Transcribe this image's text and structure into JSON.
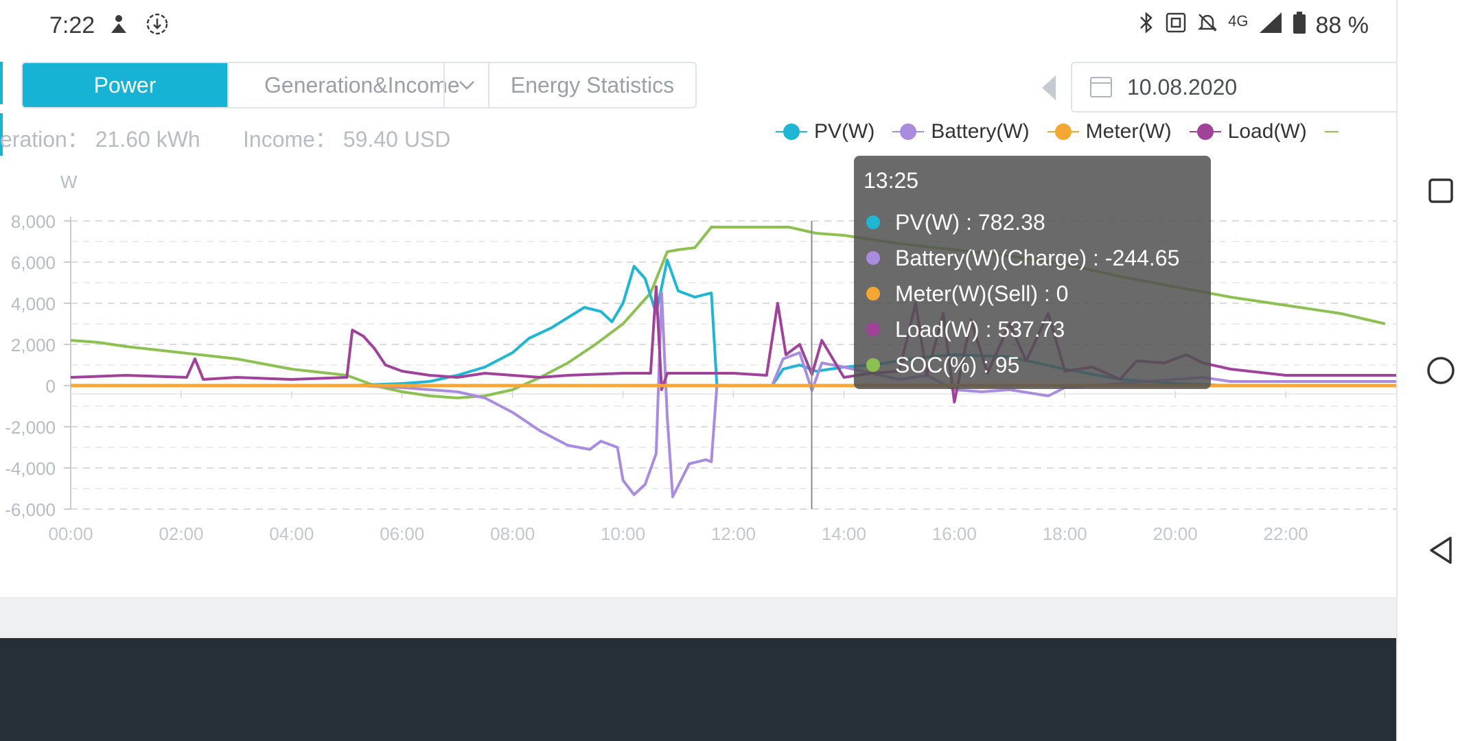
{
  "status_bar": {
    "time": "7:22",
    "left_icons": [
      "assistant-icon",
      "download-icon"
    ],
    "right_icons": [
      "bluetooth-icon",
      "nfc-icon",
      "mute-icon",
      "4g-icon",
      "signal-icon",
      "battery-icon"
    ],
    "network": "4G",
    "battery_percent": "88 %"
  },
  "tabs": {
    "power": "Power",
    "generation_income": "Generation&Income",
    "energy_statistics": "Energy Statistics"
  },
  "date": {
    "value": "10.08.2020"
  },
  "summary": {
    "generation_label": "eration：",
    "generation_value": "21.60 kWh",
    "income_label": "Income：",
    "income_value": "59.40 USD"
  },
  "legend": [
    {
      "name": "PV(W)",
      "color": "#1fb6d4"
    },
    {
      "name": "Battery(W)",
      "color": "#a98be0"
    },
    {
      "name": "Meter(W)",
      "color": "#f5a733"
    },
    {
      "name": "Load(W)",
      "color": "#a0429a"
    }
  ],
  "chart_data": {
    "type": "line",
    "ylabel": "W",
    "ylim": [
      -6000,
      8000
    ],
    "y_ticks": [
      "8,000",
      "6,000",
      "4,000",
      "2,000",
      "0",
      "-2,000",
      "-4,000",
      "-6,000"
    ],
    "x_ticks": [
      "00:00",
      "02:00",
      "04:00",
      "06:00",
      "08:00",
      "10:00",
      "12:00",
      "14:00",
      "16:00",
      "18:00",
      "20:00",
      "22:00"
    ],
    "grid": true,
    "series": [
      {
        "name": "PV(W)",
        "color": "#1fb6d4",
        "points": [
          [
            0,
            0
          ],
          [
            5,
            0
          ],
          [
            5.5,
            50
          ],
          [
            6,
            100
          ],
          [
            6.5,
            200
          ],
          [
            7,
            500
          ],
          [
            7.5,
            900
          ],
          [
            8,
            1600
          ],
          [
            8.3,
            2300
          ],
          [
            8.7,
            2800
          ],
          [
            9,
            3300
          ],
          [
            9.3,
            3800
          ],
          [
            9.6,
            3600
          ],
          [
            9.8,
            3100
          ],
          [
            10,
            4000
          ],
          [
            10.2,
            5800
          ],
          [
            10.4,
            5200
          ],
          [
            10.6,
            3500
          ],
          [
            10.8,
            6100
          ],
          [
            11,
            4600
          ],
          [
            11.3,
            4300
          ],
          [
            11.6,
            4500
          ],
          [
            11.7,
            0
          ],
          [
            12.7,
            0
          ],
          [
            12.9,
            800
          ],
          [
            13.2,
            1000
          ],
          [
            13.5,
            700
          ],
          [
            14,
            900
          ],
          [
            14.5,
            1000
          ],
          [
            15,
            1200
          ],
          [
            15.5,
            1400
          ],
          [
            16,
            1500
          ],
          [
            17,
            1400
          ],
          [
            18,
            800
          ],
          [
            19,
            300
          ],
          [
            20,
            100
          ],
          [
            21,
            0
          ],
          [
            24,
            0
          ]
        ]
      },
      {
        "name": "Battery(W)",
        "color": "#a98be0",
        "points": [
          [
            0,
            0
          ],
          [
            5.2,
            0
          ],
          [
            6,
            -100
          ],
          [
            7,
            -300
          ],
          [
            7.5,
            -600
          ],
          [
            8,
            -1300
          ],
          [
            8.5,
            -2200
          ],
          [
            9,
            -2900
          ],
          [
            9.4,
            -3100
          ],
          [
            9.6,
            -2700
          ],
          [
            9.9,
            -3000
          ],
          [
            10,
            -4600
          ],
          [
            10.2,
            -5300
          ],
          [
            10.4,
            -4800
          ],
          [
            10.6,
            -3300
          ],
          [
            10.7,
            4500
          ],
          [
            10.8,
            -1500
          ],
          [
            10.9,
            -5400
          ],
          [
            11.2,
            -3800
          ],
          [
            11.5,
            -3600
          ],
          [
            11.6,
            -3700
          ],
          [
            11.7,
            0
          ],
          [
            12.7,
            0
          ],
          [
            12.9,
            1300
          ],
          [
            13.2,
            1600
          ],
          [
            13.42,
            -244.65
          ],
          [
            13.6,
            1100
          ],
          [
            14,
            900
          ],
          [
            14.5,
            600
          ],
          [
            15,
            300
          ],
          [
            15.5,
            500
          ],
          [
            16,
            -200
          ],
          [
            16.5,
            -300
          ],
          [
            17,
            -200
          ],
          [
            17.7,
            -500
          ],
          [
            18,
            -100
          ],
          [
            19,
            100
          ],
          [
            20,
            300
          ],
          [
            20.5,
            400
          ],
          [
            21,
            200
          ],
          [
            24,
            200
          ]
        ]
      },
      {
        "name": "Meter(W)",
        "color": "#f5a733",
        "points": [
          [
            0,
            0
          ],
          [
            24,
            0
          ]
        ]
      },
      {
        "name": "Load(W)",
        "color": "#a0429a",
        "points": [
          [
            0,
            400
          ],
          [
            1,
            500
          ],
          [
            2.1,
            400
          ],
          [
            2.25,
            1300
          ],
          [
            2.4,
            300
          ],
          [
            3,
            400
          ],
          [
            4,
            300
          ],
          [
            5,
            400
          ],
          [
            5.1,
            2700
          ],
          [
            5.3,
            2400
          ],
          [
            5.5,
            1800
          ],
          [
            5.7,
            1000
          ],
          [
            6,
            700
          ],
          [
            6.5,
            500
          ],
          [
            7,
            400
          ],
          [
            7.5,
            600
          ],
          [
            8,
            500
          ],
          [
            8.5,
            400
          ],
          [
            9,
            500
          ],
          [
            10,
            600
          ],
          [
            10.5,
            600
          ],
          [
            10.6,
            4800
          ],
          [
            10.7,
            -200
          ],
          [
            10.8,
            600
          ],
          [
            11,
            600
          ],
          [
            12,
            600
          ],
          [
            12.6,
            500
          ],
          [
            12.8,
            4000
          ],
          [
            12.95,
            1500
          ],
          [
            13.2,
            2000
          ],
          [
            13.42,
            537.73
          ],
          [
            13.6,
            2200
          ],
          [
            14,
            400
          ],
          [
            14.5,
            600
          ],
          [
            15,
            700
          ],
          [
            15.3,
            4000
          ],
          [
            15.5,
            500
          ],
          [
            15.8,
            3500
          ],
          [
            16,
            -800
          ],
          [
            16.3,
            3200
          ],
          [
            16.6,
            600
          ],
          [
            17,
            3000
          ],
          [
            17.3,
            1200
          ],
          [
            17.7,
            3500
          ],
          [
            18,
            700
          ],
          [
            18.5,
            900
          ],
          [
            19,
            300
          ],
          [
            19.3,
            1200
          ],
          [
            19.8,
            1100
          ],
          [
            20.2,
            1500
          ],
          [
            20.5,
            1100
          ],
          [
            21,
            800
          ],
          [
            22,
            500
          ],
          [
            24,
            500
          ]
        ]
      },
      {
        "name": "SOC(%)",
        "color": "#8cc152",
        "points": [
          [
            0,
            2200
          ],
          [
            0.5,
            2100
          ],
          [
            1,
            1900
          ],
          [
            2,
            1600
          ],
          [
            3,
            1300
          ],
          [
            4,
            800
          ],
          [
            5,
            500
          ],
          [
            5.5,
            0
          ],
          [
            6,
            -300
          ],
          [
            6.5,
            -500
          ],
          [
            7,
            -600
          ],
          [
            7.5,
            -500
          ],
          [
            8,
            -200
          ],
          [
            8.5,
            400
          ],
          [
            9,
            1100
          ],
          [
            9.5,
            2000
          ],
          [
            10,
            3000
          ],
          [
            10.5,
            4500
          ],
          [
            10.8,
            6500
          ],
          [
            11,
            6600
          ],
          [
            11.3,
            6700
          ],
          [
            11.6,
            7700
          ],
          [
            12,
            7700
          ],
          [
            13,
            7700
          ],
          [
            13.5,
            7400
          ],
          [
            14,
            7300
          ],
          [
            15,
            6900
          ],
          [
            16,
            6600
          ],
          [
            17,
            6300
          ],
          [
            18,
            5900
          ],
          [
            19,
            5300
          ],
          [
            20,
            4800
          ],
          [
            21,
            4300
          ],
          [
            22,
            3900
          ],
          [
            23,
            3500
          ],
          [
            23.8,
            3000
          ]
        ]
      }
    ],
    "tooltip": {
      "time": "13:25",
      "rows": [
        {
          "label": "PV(W) : 782.38",
          "color": "#1fb6d4"
        },
        {
          "label": "Battery(W)(Charge) : -244.65",
          "color": "#a98be0"
        },
        {
          "label": "Meter(W)(Sell) : 0",
          "color": "#f5a733"
        },
        {
          "label": "Load(W) : 537.73",
          "color": "#a0429a"
        },
        {
          "label": "SOC(%) : 95",
          "color": "#8cc152"
        }
      ]
    }
  }
}
